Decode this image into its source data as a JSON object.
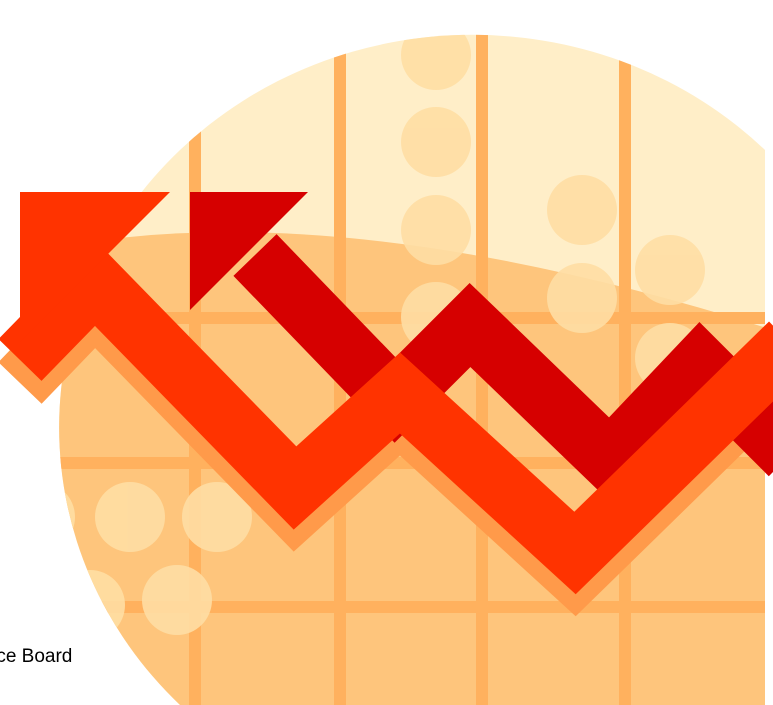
{
  "caption": {
    "text": "rce Board"
  },
  "colors": {
    "background": "#FFFFFF",
    "circle_light": "#FFEEC8",
    "circle_fill": "#FEC57C",
    "grid_lines": "#FFB15E",
    "dots": "#FFDEA4",
    "arrow_front": "#FF3300",
    "arrow_back": "#D60000",
    "arrow_shadow": "#FF9A4A"
  },
  "icons": [
    "downward-trend-arrow-icon"
  ]
}
